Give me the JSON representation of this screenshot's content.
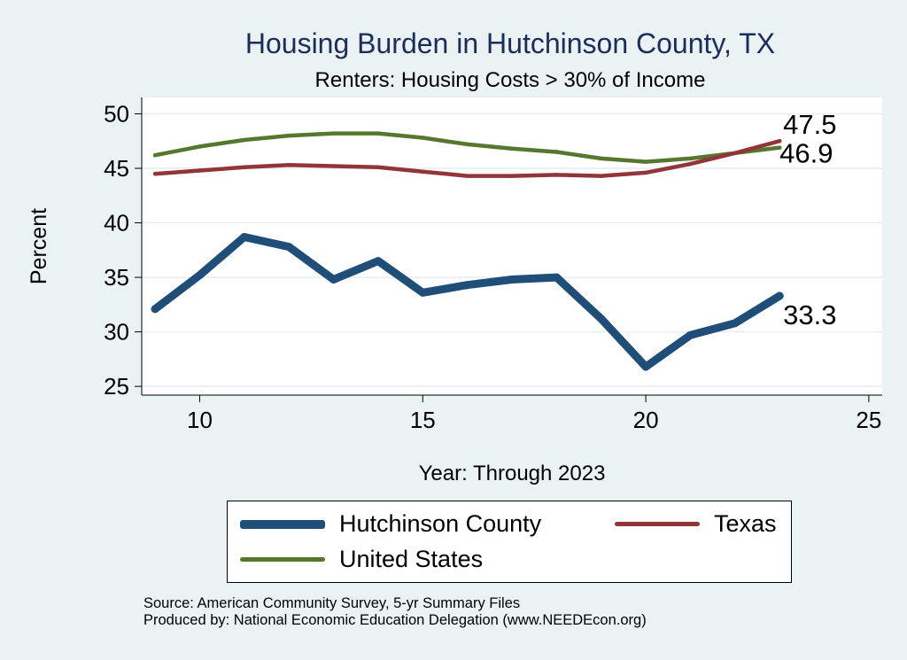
{
  "chart_data": {
    "type": "line",
    "title": "Housing Burden in Hutchinson County, TX",
    "subtitle": "Renters: Housing Costs > 30% of Income",
    "xlabel": "Year: Through 2023",
    "ylabel": "Percent",
    "xlim": [
      8.7,
      25.3
    ],
    "ylim": [
      24.2,
      51.5
    ],
    "x_ticks": [
      10,
      15,
      20,
      25
    ],
    "y_ticks": [
      25,
      30,
      35,
      40,
      45,
      50
    ],
    "grid": true,
    "legend_position": "bottom",
    "series": [
      {
        "name": "Hutchinson County",
        "color": "#1f4e79",
        "x": [
          9,
          10,
          11,
          12,
          13,
          14,
          15,
          16,
          17,
          18,
          19,
          20,
          21,
          22,
          23
        ],
        "values": [
          32.1,
          35.2,
          38.7,
          37.8,
          34.8,
          36.5,
          33.6,
          34.3,
          34.8,
          35.0,
          31.2,
          26.8,
          29.7,
          30.8,
          33.3
        ],
        "end_label": "33.3"
      },
      {
        "name": "Texas",
        "color": "#913538",
        "x": [
          9,
          10,
          11,
          12,
          13,
          14,
          15,
          16,
          17,
          18,
          19,
          20,
          21,
          22,
          23
        ],
        "values": [
          44.5,
          44.8,
          45.1,
          45.3,
          45.2,
          45.1,
          44.7,
          44.3,
          44.3,
          44.4,
          44.3,
          44.6,
          45.4,
          46.4,
          47.5
        ],
        "end_label": "47.5"
      },
      {
        "name": "United States",
        "color": "#55772e",
        "x": [
          9,
          10,
          11,
          12,
          13,
          14,
          15,
          16,
          17,
          18,
          19,
          20,
          21,
          22,
          23
        ],
        "values": [
          46.2,
          47.0,
          47.6,
          48.0,
          48.2,
          48.2,
          47.8,
          47.2,
          46.8,
          46.5,
          45.9,
          45.6,
          45.9,
          46.4,
          46.9
        ],
        "end_label": "46.9"
      }
    ]
  },
  "legend": {
    "items": [
      {
        "label": "Hutchinson County",
        "color": "#1f4e79"
      },
      {
        "label": "Texas",
        "color": "#913538"
      },
      {
        "label": "United States",
        "color": "#55772e"
      }
    ]
  },
  "footer": {
    "source": "Source: American Community Survey, 5-yr Summary Files",
    "producer": "Produced by: National Economic Education Delegation (www.NEEDEcon.org)"
  }
}
